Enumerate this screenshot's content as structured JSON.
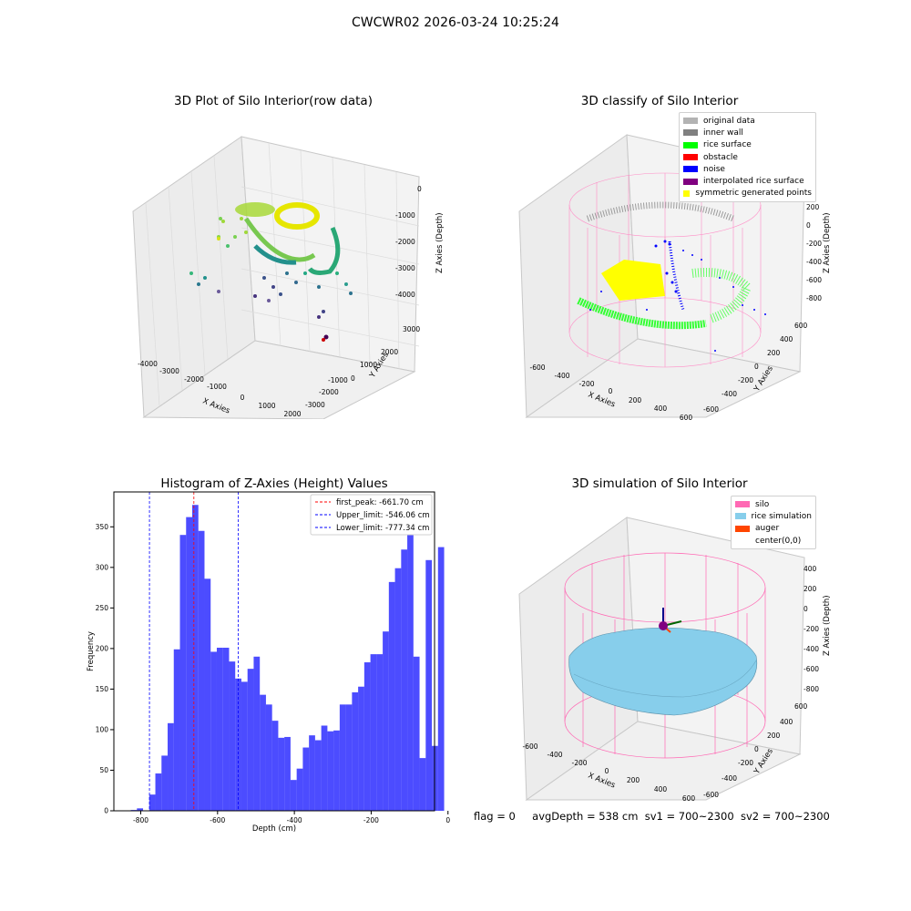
{
  "page": {
    "suptitle": "CWCWR02 2026-03-24 10:25:24"
  },
  "panels": {
    "raw": {
      "title": "3D Plot of Silo Interior(row data)",
      "xlabel": "X Axies",
      "ylabel": "Y Axies",
      "zlabel": "Z Axies (Depth)",
      "xticks": [
        "-4000",
        "-3000",
        "-2000",
        "-1000",
        "0",
        "1000",
        "2000"
      ],
      "yticks": [
        "3000",
        "2000",
        "1000",
        "0",
        "-1000",
        "-2000",
        "-3000"
      ],
      "zticks": [
        "0",
        "-1000",
        "-2000",
        "-3000",
        "-4000"
      ]
    },
    "classify": {
      "title": "3D classify of Silo Interior",
      "xlabel": "X Axies",
      "ylabel": "Y Axies",
      "zlabel": "Z Axies (Depth)",
      "xticks": [
        "-600",
        "-400",
        "-200",
        "0",
        "200",
        "400",
        "600"
      ],
      "yticks": [
        "600",
        "400",
        "200",
        "0",
        "-200",
        "-400",
        "-600"
      ],
      "zticks": [
        "200",
        "0",
        "-200",
        "-400",
        "-600",
        "-800"
      ],
      "legend": [
        {
          "label": "original data",
          "color": "#b3b3b3"
        },
        {
          "label": "inner wall",
          "color": "#808080"
        },
        {
          "label": "rice surface",
          "color": "#00ff00"
        },
        {
          "label": "obstacle",
          "color": "#ff0000"
        },
        {
          "label": "noise",
          "color": "#0000ff"
        },
        {
          "label": "interpolated rice surface",
          "color": "#800080"
        },
        {
          "label": "symmetric generated points",
          "color": "#ffff00"
        }
      ]
    },
    "simulation": {
      "title": "3D simulation of Silo Interior",
      "xlabel": "X Axies",
      "ylabel": "Y Axies",
      "zlabel": "Z Axies (Depth)",
      "xticks": [
        "-600",
        "-400",
        "-200",
        "0",
        "200",
        "400",
        "600"
      ],
      "yticks": [
        "600",
        "400",
        "200",
        "0",
        "-200",
        "-400",
        "-600"
      ],
      "zticks": [
        "400",
        "200",
        "0",
        "-200",
        "-400",
        "-600",
        "-800"
      ],
      "legend": [
        {
          "label": "silo",
          "color": "#ff69b4"
        },
        {
          "label": "rice simulation",
          "color": "#87ceeb"
        },
        {
          "label": "auger",
          "color": "#ff4500"
        },
        {
          "label": "center(0,0)",
          "color": ""
        }
      ],
      "info": {
        "flag": "flag = 0",
        "avg": "avgDepth = 538 cm",
        "sv1": "sv1 = 700~2300",
        "sv2": "sv2 = 700~2300"
      }
    }
  },
  "chart_data": [
    {
      "type": "bar",
      "title": "Histogram of Z-Axies (Height) Values",
      "xlabel": "Depth (cm)",
      "ylabel": "Frequency",
      "xlim": [
        -870,
        -35
      ],
      "ylim": [
        0,
        393
      ],
      "xticks": [
        -800,
        -600,
        -400,
        -200,
        0
      ],
      "yticks": [
        0,
        50,
        100,
        150,
        200,
        250,
        300,
        350
      ],
      "bar_color": "#0000ff",
      "bin_edges": [
        -826,
        -810,
        -794,
        -778,
        -762,
        -746,
        -730,
        -714,
        -698,
        -682,
        -666,
        -650,
        -634,
        -618,
        -602,
        -586,
        -570,
        -554,
        -538,
        -522,
        -506,
        -490,
        -474,
        -458,
        -442,
        -426,
        -410,
        -394,
        -378,
        -362,
        -346,
        -330,
        -314,
        -298,
        -282,
        -266,
        -250,
        -234,
        -218,
        -202,
        -186,
        -170,
        -154,
        -138,
        -122,
        -106,
        -90,
        -74,
        -58,
        -42,
        -26,
        -10
      ],
      "values": [
        1,
        3,
        0,
        20,
        46,
        68,
        108,
        199,
        340,
        362,
        377,
        345,
        286,
        196,
        201,
        201,
        184,
        163,
        159,
        175,
        190,
        143,
        131,
        111,
        90,
        91,
        38,
        52,
        78,
        93,
        87,
        105,
        98,
        99,
        131,
        131,
        146,
        153,
        183,
        193,
        193,
        221,
        282,
        299,
        322,
        340,
        190,
        65,
        309,
        80,
        325
      ],
      "lines": [
        {
          "label": "first_peak: -661.70 cm",
          "x": -661.7,
          "color": "#ff0000"
        },
        {
          "label": "Upper_limit: -546.06 cm",
          "x": -546.06,
          "color": "#0000ff"
        },
        {
          "label": "Lower_limit: -777.34 cm",
          "x": -777.34,
          "color": "#0000ff"
        }
      ],
      "legend_position": "top-right"
    }
  ]
}
